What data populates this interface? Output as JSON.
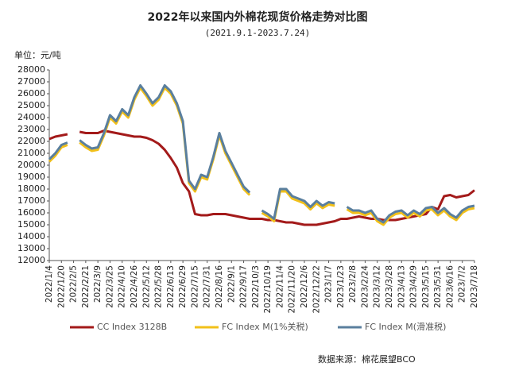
{
  "chart_data": {
    "type": "line",
    "title": "2022年以来国内外棉花现货价格走势对比图",
    "subtitle": "(2021.9.1-2023.7.24)",
    "y_label": "单位：元/吨",
    "source": "数据来源：棉花展望BCO",
    "categories": [
      "2022/1/4",
      null,
      "2022/1/20",
      null,
      "2022/2/5",
      null,
      "2022/2/21",
      null,
      "2022/3/9",
      null,
      "2022/3/25",
      null,
      "2022/4/10",
      null,
      "2022/4/26",
      null,
      "2022/5/12",
      null,
      "2022/5/28",
      null,
      "2022/6/13",
      null,
      "2022/6/29",
      null,
      "2022/7/15",
      null,
      "2022/7/31",
      null,
      "2022/8/16",
      null,
      "2022/9/1",
      null,
      "2022/9/17",
      null,
      "2022/10/3",
      null,
      "2022/10/19",
      null,
      "2022/11/4",
      null,
      "2022/11/20",
      null,
      "2022/12/6",
      null,
      "2022/12/22",
      null,
      "2023/1/7",
      null,
      "2023/1/23",
      null,
      "2023/2/8",
      null,
      "2023/2/24",
      null,
      "2023/3/12",
      null,
      "2023/3/28",
      null,
      "2023/4/13",
      null,
      "2023/4/29",
      null,
      "2023/5/15",
      null,
      "2023/5/31",
      null,
      "2023/6/16",
      null,
      "2023/7/2",
      null,
      "2023/7/18"
    ],
    "series": [
      {
        "name": "CC Index 3128B",
        "color": "#a31a1a",
        "values": [
          22200,
          22400,
          22500,
          22600,
          null,
          22800,
          22700,
          22700,
          22700,
          22900,
          22800,
          22700,
          22600,
          22500,
          22400,
          22400,
          22300,
          22100,
          21800,
          21300,
          20600,
          19800,
          18500,
          17800,
          15900,
          15800,
          15800,
          15900,
          15900,
          15900,
          15800,
          15700,
          15600,
          15500,
          15500,
          15500,
          15400,
          15400,
          15300,
          15200,
          15200,
          15100,
          15000,
          15000,
          15000,
          15100,
          15200,
          15300,
          15500,
          15500,
          15600,
          15700,
          15600,
          15500,
          15500,
          15400,
          15400,
          15400,
          15500,
          15600,
          15700,
          15800,
          15900,
          16500,
          16300,
          17400,
          17500,
          17300,
          17400,
          17500,
          17900
        ]
      },
      {
        "name": "FC Index M(1%关税)",
        "color": "#f2c019",
        "values": [
          20300,
          20800,
          21500,
          21700,
          null,
          21900,
          21500,
          21200,
          21300,
          22500,
          24000,
          23500,
          24500,
          24000,
          25500,
          26500,
          25800,
          25000,
          25500,
          26500,
          26000,
          25000,
          23500,
          18500,
          17800,
          19000,
          18800,
          20500,
          22500,
          21000,
          20000,
          19000,
          18000,
          17500,
          null,
          16000,
          15700,
          15300,
          17800,
          17800,
          17200,
          17000,
          16800,
          16300,
          16800,
          16400,
          16700,
          16600,
          null,
          16300,
          16000,
          16000,
          15800,
          16000,
          15300,
          15000,
          15600,
          15900,
          16000,
          15600,
          16000,
          15700,
          16200,
          16300,
          15800,
          16200,
          15700,
          15400,
          16000,
          16300,
          16400
        ]
      },
      {
        "name": "FC Index M(滑准税)",
        "color": "#5a7f9e",
        "values": [
          20500,
          21000,
          21700,
          21900,
          null,
          22100,
          21700,
          21400,
          21500,
          22700,
          24200,
          23700,
          24700,
          24200,
          25700,
          26700,
          26000,
          25200,
          25700,
          26700,
          26200,
          25200,
          23700,
          18700,
          18000,
          19200,
          19000,
          20700,
          22700,
          21200,
          20200,
          19200,
          18200,
          17700,
          null,
          16200,
          15900,
          15500,
          18000,
          18000,
          17400,
          17200,
          17000,
          16500,
          17000,
          16600,
          16900,
          16800,
          null,
          16500,
          16200,
          16200,
          16000,
          16200,
          15500,
          15200,
          15800,
          16100,
          16200,
          15800,
          16200,
          15900,
          16400,
          16500,
          16000,
          16400,
          15900,
          15600,
          16200,
          16500,
          16600
        ]
      }
    ],
    "ylim": [
      12000,
      28000
    ],
    "yticks": [
      12000,
      13000,
      14000,
      15000,
      16000,
      17000,
      18000,
      19000,
      20000,
      21000,
      22000,
      23000,
      24000,
      25000,
      26000,
      27000,
      28000
    ],
    "grid": false
  }
}
